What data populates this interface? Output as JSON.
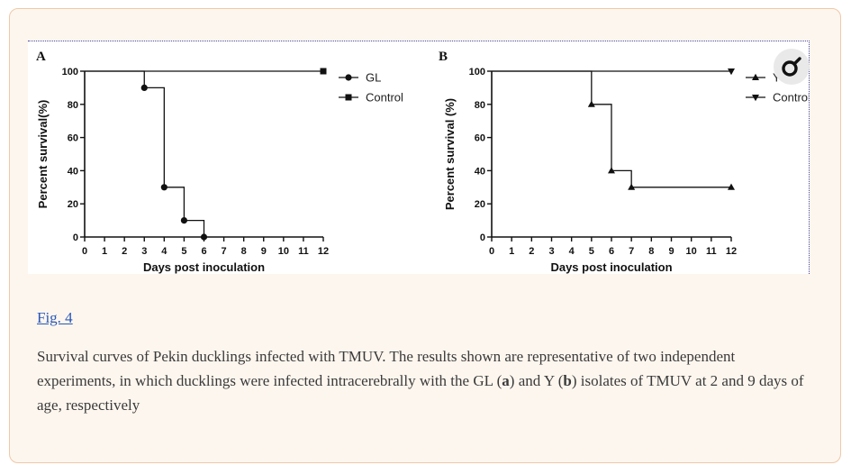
{
  "figure": {
    "link_label": "Fig. 4",
    "caption_parts": {
      "p1": "Survival curves of Pekin ducklings infected with TMUV. The results shown are representative of two independent experiments, in which ducklings were infected intracerebrally with the GL (",
      "a": "a",
      "p2": ") and Y (",
      "b": "b",
      "p3": ") isolates of TMUV at 2 and 9 days of age, respectively"
    },
    "zoom_icon": "magnifier-icon"
  },
  "chart_data": [
    {
      "panel": "A",
      "type": "line",
      "step": true,
      "xlabel": "Days post inoculation",
      "ylabel": "Percent survival(%)",
      "xlim": [
        0,
        12
      ],
      "ylim": [
        0,
        100
      ],
      "xticks": [
        0,
        1,
        2,
        3,
        4,
        5,
        6,
        7,
        8,
        9,
        10,
        11,
        12
      ],
      "yticks": [
        0,
        20,
        40,
        60,
        80,
        100
      ],
      "legend_position": "right",
      "series": [
        {
          "name": "GL",
          "marker": "circle",
          "x": [
            0,
            3,
            4,
            5,
            6
          ],
          "y": [
            100,
            90,
            30,
            10,
            0
          ]
        },
        {
          "name": "Control",
          "marker": "square",
          "x": [
            0,
            12
          ],
          "y": [
            100,
            100
          ]
        }
      ]
    },
    {
      "panel": "B",
      "type": "line",
      "step": true,
      "xlabel": "Days post inoculation",
      "ylabel": "Percent survival (%)",
      "xlim": [
        0,
        12
      ],
      "ylim": [
        0,
        100
      ],
      "xticks": [
        0,
        1,
        2,
        3,
        4,
        5,
        6,
        7,
        8,
        9,
        10,
        11,
        12
      ],
      "yticks": [
        0,
        20,
        40,
        60,
        80,
        100
      ],
      "legend_position": "right",
      "series": [
        {
          "name": "Y",
          "marker": "triangle-up",
          "x": [
            0,
            5,
            6,
            7,
            12
          ],
          "y": [
            100,
            80,
            40,
            30,
            30
          ]
        },
        {
          "name": "Control",
          "marker": "triangle-down",
          "x": [
            0,
            12
          ],
          "y": [
            100,
            100
          ]
        }
      ]
    }
  ]
}
